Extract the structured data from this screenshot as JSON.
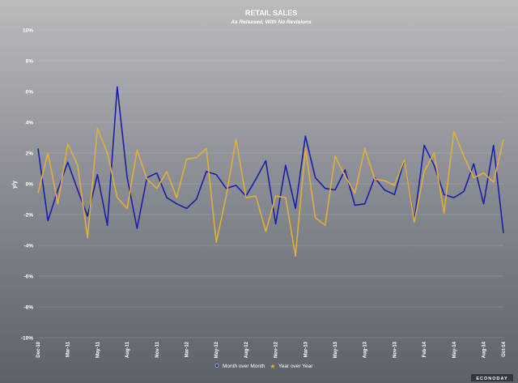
{
  "chart_data": {
    "type": "line",
    "title": "RETAIL SALES",
    "subtitle": "As Released, With No Revisions",
    "ylabel": "y/y",
    "xlabel": "",
    "ylim": [
      -10,
      10
    ],
    "yticks": [
      "10%",
      "8%",
      "6%",
      "4%",
      "2%",
      "0%",
      "-2%",
      "-4%",
      "-6%",
      "-8%",
      "-10%"
    ],
    "yticks_values": [
      10,
      8,
      6,
      4,
      2,
      0,
      -2,
      -4,
      -6,
      -8,
      -10
    ],
    "x_tick_labels": [
      "Dec-10",
      "Mar-11",
      "May-11",
      "Aug-11",
      "Nov-11",
      "Mar-12",
      "May-12",
      "Aug-12",
      "Nov-12",
      "Mar-13",
      "May-13",
      "Aug-13",
      "Nov-13",
      "Feb-14",
      "May-14",
      "Aug-14",
      "Oct-14"
    ],
    "x_tick_indices": [
      0,
      3,
      6,
      9,
      12,
      15,
      18,
      21,
      24,
      27,
      30,
      33,
      36,
      39,
      42,
      45,
      47
    ],
    "grid": true,
    "legend_position": "bottom",
    "series": [
      {
        "name": "Month over Month",
        "color": "#1a1fa8",
        "marker": "circle",
        "values": [
          2.3,
          -2.4,
          -0.4,
          1.4,
          -0.4,
          -2.1,
          0.6,
          -2.7,
          6.3,
          0.4,
          -2.9,
          0.4,
          0.7,
          -0.9,
          -1.3,
          -1.6,
          -1.0,
          0.8,
          0.6,
          -0.3,
          -0.1,
          -0.8,
          0.3,
          1.5,
          -2.6,
          1.2,
          -1.6,
          3.1,
          0.4,
          -0.3,
          -0.4,
          0.9,
          -1.4,
          -1.3,
          0.4,
          -0.4,
          -0.7,
          1.6,
          -2.4,
          2.5,
          1.2,
          -0.7,
          -0.9,
          -0.5,
          1.3,
          -1.3,
          2.5,
          -3.2
        ]
      },
      {
        "name": "Year over Year",
        "color": "#e2ae3b",
        "marker": "star",
        "values": [
          -0.6,
          2.0,
          -1.3,
          2.6,
          1.2,
          -3.5,
          3.6,
          2.0,
          -0.9,
          -1.6,
          2.2,
          0.3,
          -0.3,
          0.8,
          -0.9,
          1.6,
          1.7,
          2.3,
          -3.8,
          -0.8,
          2.9,
          -0.9,
          -0.8,
          -3.1,
          -0.8,
          -0.9,
          -4.7,
          2.3,
          -2.2,
          -2.7,
          1.8,
          0.5,
          -0.6,
          2.3,
          0.3,
          0.2,
          -0.1,
          1.6,
          -2.5,
          0.8,
          2.0,
          -1.9,
          3.4,
          1.8,
          0.4,
          0.7,
          0.1,
          2.9
        ]
      }
    ]
  },
  "branding": "ECONODAY"
}
